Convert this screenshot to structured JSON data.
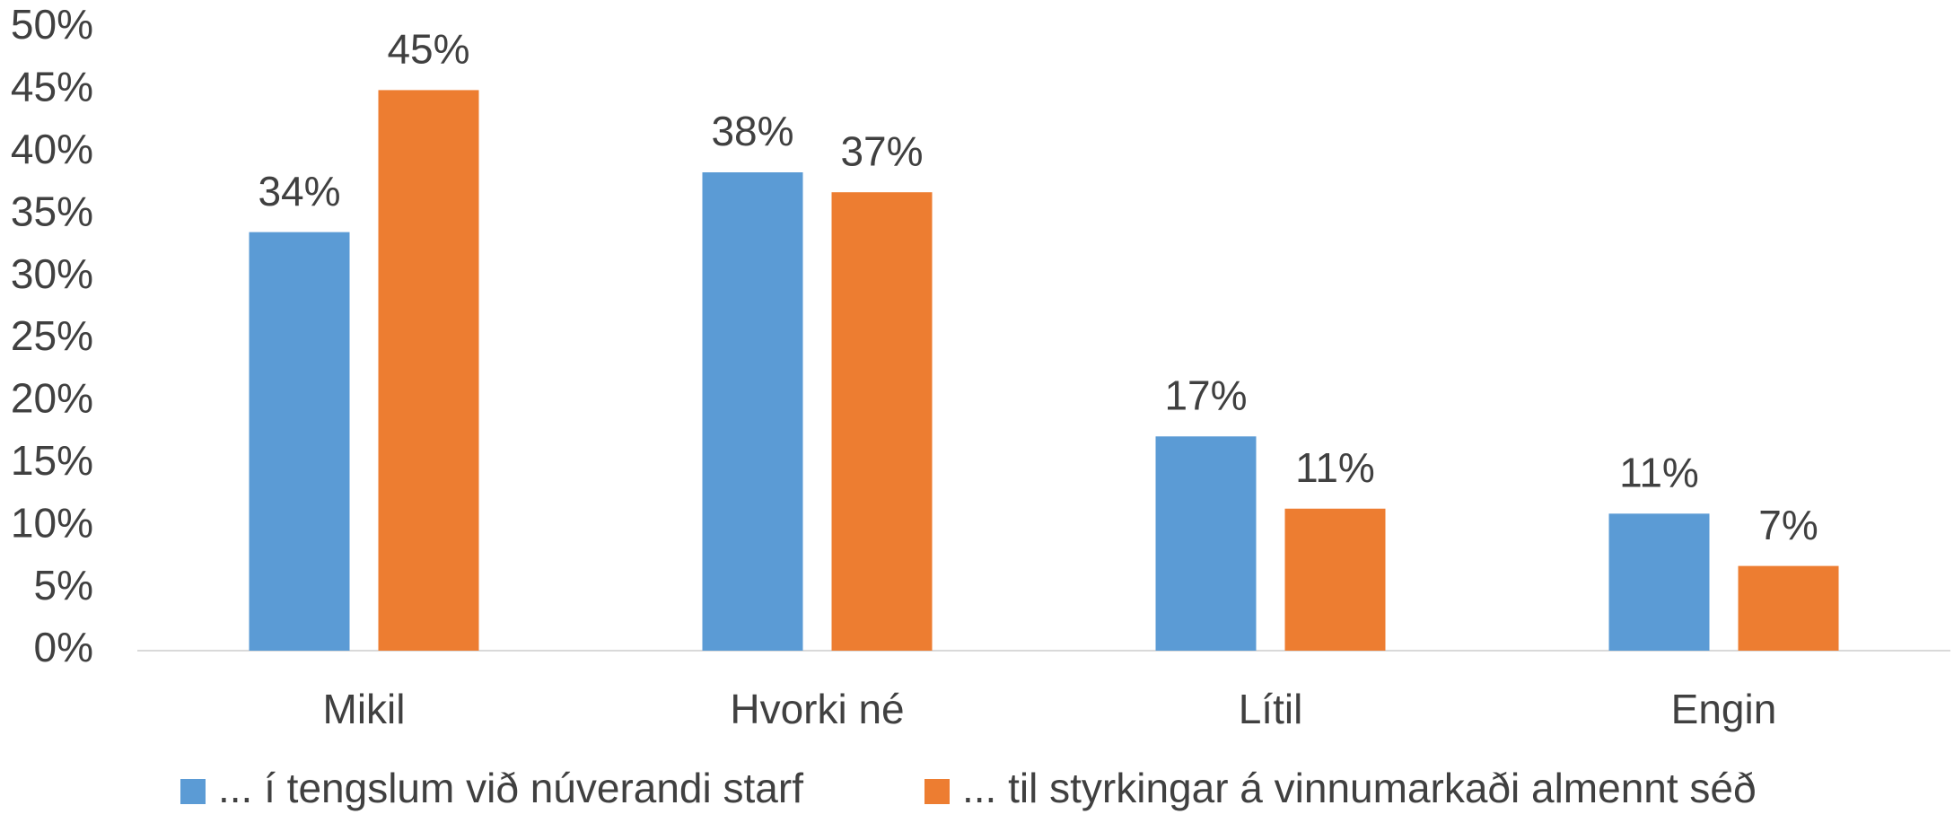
{
  "chart_data": {
    "type": "bar",
    "categories": [
      "Mikil",
      "Hvorki né",
      "Lítil",
      "Engin"
    ],
    "series": [
      {
        "name": "... í tengslum við núverandi starf",
        "color": "#5b9bd5",
        "values": [
          33.6,
          38.4,
          17.2,
          11.0
        ],
        "value_labels": [
          "34%",
          "38%",
          "17%",
          "11%"
        ]
      },
      {
        "name": "... til styrkingar á vinnumarkaði almennt séð",
        "color": "#ed7d31",
        "values": [
          45.0,
          36.8,
          11.4,
          6.8
        ],
        "value_labels": [
          "45%",
          "37%",
          "11%",
          "7%"
        ]
      }
    ],
    "ylim": [
      0,
      50
    ],
    "yticks": [
      {
        "value": 0,
        "label": "0%"
      },
      {
        "value": 5,
        "label": "5%"
      },
      {
        "value": 10,
        "label": "10%"
      },
      {
        "value": 15,
        "label": "15%"
      },
      {
        "value": 20,
        "label": "20%"
      },
      {
        "value": 25,
        "label": "25%"
      },
      {
        "value": 30,
        "label": "30%"
      },
      {
        "value": 35,
        "label": "35%"
      },
      {
        "value": 40,
        "label": "40%"
      },
      {
        "value": 45,
        "label": "45%"
      },
      {
        "value": 50,
        "label": "50%"
      }
    ],
    "grid": false,
    "legend": "bottom"
  }
}
